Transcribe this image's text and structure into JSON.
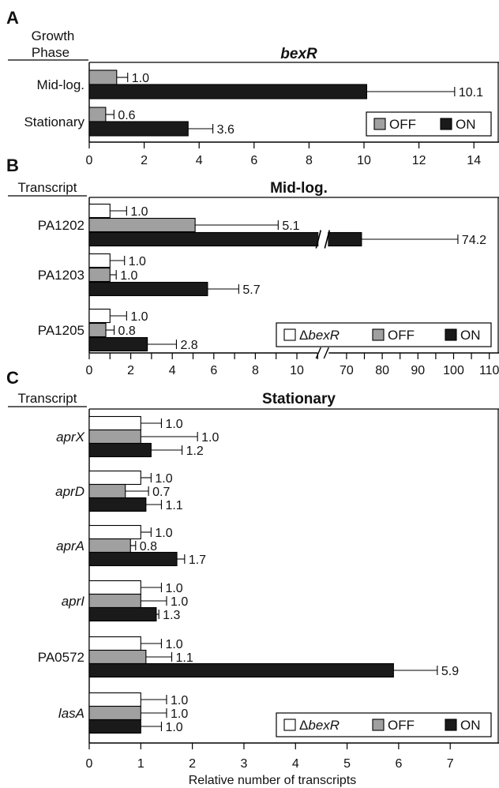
{
  "colors": {
    "delta": "#ffffff",
    "off": "#a0a0a0",
    "on": "#1a1a1a",
    "axis": "#000000"
  },
  "chart_data": [
    {
      "panel": "A",
      "type": "bar",
      "orientation": "horizontal",
      "header": [
        "Growth",
        "Phase"
      ],
      "title": "bexR",
      "title_italic": true,
      "categories": [
        {
          "label": "Mid-log.",
          "italic": false
        },
        {
          "label": "Stationary",
          "italic": false
        }
      ],
      "series": [
        {
          "name": "OFF",
          "color": "#a0a0a0",
          "values": [
            1.0,
            0.6
          ],
          "errors": [
            0.4,
            0.3
          ],
          "labels": [
            "1.0",
            "0.6"
          ]
        },
        {
          "name": "ON",
          "color": "#1a1a1a",
          "values": [
            10.1,
            3.6
          ],
          "errors": [
            3.2,
            0.9
          ],
          "labels": [
            "10.1",
            "3.6"
          ]
        }
      ],
      "xlim": [
        0,
        15
      ],
      "xticks": [
        0,
        2,
        4,
        6,
        8,
        10,
        12,
        14
      ],
      "tick_labels": [
        "0",
        "2",
        "4",
        "6",
        "8",
        "10",
        "12",
        "14"
      ],
      "legend": [
        {
          "label": "OFF",
          "color": "#a0a0a0",
          "italic": false
        },
        {
          "label": "ON",
          "color": "#1a1a1a",
          "italic": false
        }
      ],
      "legend_position": "bottom-right"
    },
    {
      "panel": "B",
      "type": "bar",
      "orientation": "horizontal",
      "header": [
        "Transcript"
      ],
      "title": "Mid-log.",
      "title_italic": false,
      "categories": [
        {
          "label": "PA1202",
          "italic": false
        },
        {
          "label": "PA1203",
          "italic": false
        },
        {
          "label": "PA1205",
          "italic": false
        }
      ],
      "series": [
        {
          "name": "ΔbexR",
          "color": "#ffffff",
          "values": [
            1.0,
            1.0,
            1.0
          ],
          "errors": [
            0.8,
            0.7,
            0.8
          ],
          "labels": [
            "1.0",
            "1.0",
            "1.0"
          ]
        },
        {
          "name": "OFF",
          "color": "#a0a0a0",
          "values": [
            5.1,
            1.0,
            0.8
          ],
          "errors": [
            4.0,
            0.3,
            0.4
          ],
          "labels": [
            "5.1",
            "1.0",
            "0.8"
          ]
        },
        {
          "name": "ON",
          "color": "#1a1a1a",
          "values": [
            74.2,
            5.7,
            2.8
          ],
          "errors": [
            27.0,
            1.5,
            1.4
          ],
          "labels": [
            "74.2",
            "5.7",
            "2.8"
          ]
        }
      ],
      "axis_break": {
        "from": 11,
        "to": 65
      },
      "xticks": [
        0,
        1,
        2,
        3,
        4,
        5,
        6,
        7,
        8,
        9,
        10,
        11,
        70,
        75,
        80,
        85,
        90,
        95,
        100,
        105,
        110
      ],
      "tick_labels": [
        "0",
        "",
        "2",
        "",
        "4",
        "",
        "6",
        "",
        "8",
        "",
        "10",
        "",
        "70",
        "",
        "80",
        "",
        "90",
        "",
        "100",
        "",
        "110"
      ],
      "legend": [
        {
          "label": "ΔbexR",
          "color": "#ffffff",
          "italic": true
        },
        {
          "label": "OFF",
          "color": "#a0a0a0",
          "italic": false
        },
        {
          "label": "ON",
          "color": "#1a1a1a",
          "italic": false
        }
      ],
      "legend_position": "bottom-right"
    },
    {
      "panel": "C",
      "type": "bar",
      "orientation": "horizontal",
      "header": [
        "Transcript"
      ],
      "title": "Stationary",
      "title_italic": false,
      "categories": [
        {
          "label": "aprX",
          "italic": true
        },
        {
          "label": "aprD",
          "italic": true
        },
        {
          "label": "aprA",
          "italic": true
        },
        {
          "label": "aprI",
          "italic": true
        },
        {
          "label": "PA0572",
          "italic": false
        },
        {
          "label": "lasA",
          "italic": true
        }
      ],
      "series": [
        {
          "name": "ΔbexR",
          "color": "#ffffff",
          "values": [
            1.0,
            1.0,
            1.0,
            1.0,
            1.0,
            1.0
          ],
          "errors": [
            0.4,
            0.2,
            0.2,
            0.4,
            0.4,
            0.5
          ],
          "labels": [
            "1.0",
            "1.0",
            "1.0",
            "1.0",
            "1.0",
            "1.0"
          ]
        },
        {
          "name": "OFF",
          "color": "#a0a0a0",
          "values": [
            1.0,
            0.7,
            0.8,
            1.0,
            1.1,
            1.0
          ],
          "errors": [
            1.1,
            0.45,
            0.1,
            0.5,
            0.5,
            0.5
          ],
          "labels": [
            "1.0",
            "0.7",
            "0.8",
            "1.0",
            "1.1",
            "1.0"
          ]
        },
        {
          "name": "ON",
          "color": "#1a1a1a",
          "values": [
            1.2,
            1.1,
            1.7,
            1.3,
            5.9,
            1.0
          ],
          "errors": [
            0.6,
            0.3,
            0.15,
            0.05,
            0.85,
            0.4
          ],
          "labels": [
            "1.2",
            "1.1",
            "1.7",
            "1.3",
            "5.9",
            "1.0"
          ]
        }
      ],
      "xlim": [
        0,
        7.9
      ],
      "xticks": [
        0,
        1,
        2,
        3,
        4,
        5,
        6,
        7
      ],
      "tick_labels": [
        "0",
        "1",
        "2",
        "3",
        "4",
        "5",
        "6",
        "7"
      ],
      "xlabel": "Relative number of transcripts",
      "legend": [
        {
          "label": "ΔbexR",
          "color": "#ffffff",
          "italic": true
        },
        {
          "label": "OFF",
          "color": "#a0a0a0",
          "italic": false
        },
        {
          "label": "ON",
          "color": "#1a1a1a",
          "italic": false
        }
      ],
      "legend_position": "bottom-right"
    }
  ]
}
